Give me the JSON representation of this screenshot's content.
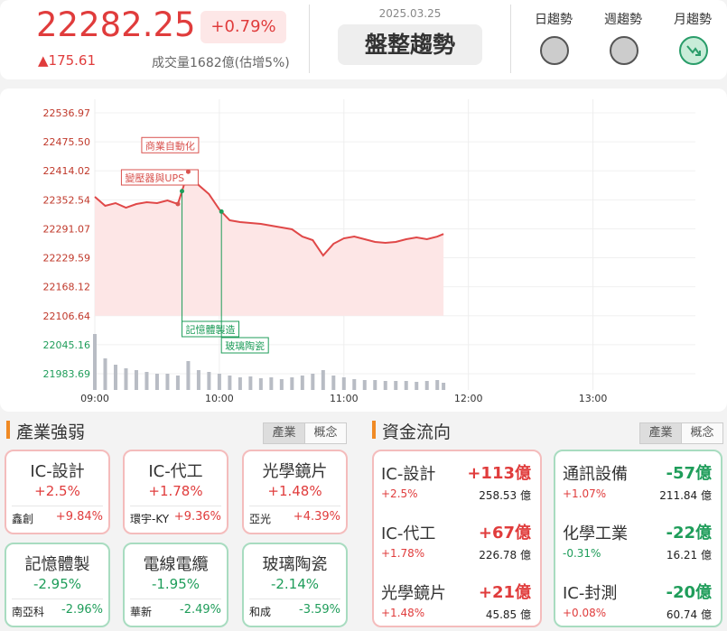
{
  "header": {
    "price": "22282.25",
    "change_pct": "+0.79%",
    "change": "▲175.61",
    "volume": "成交量1682億(估增5%)",
    "date": "2025.03.25",
    "status": "盤整趨勢",
    "trends": [
      {
        "label": "日趨勢",
        "state": "neutral"
      },
      {
        "label": "週趨勢",
        "state": "neutral"
      },
      {
        "label": "月趨勢",
        "state": "down"
      }
    ]
  },
  "chart_data": {
    "type": "line",
    "color": "#e04848",
    "fill": "#fde6e6",
    "x": [
      "09:00",
      "09:05",
      "09:10",
      "09:15",
      "09:20",
      "09:25",
      "09:30",
      "09:35",
      "09:40",
      "09:45",
      "09:50",
      "09:55",
      "10:00",
      "10:05",
      "10:10",
      "10:15",
      "10:20",
      "10:25",
      "10:30",
      "10:35",
      "10:40",
      "10:45",
      "10:50",
      "10:55",
      "11:00",
      "11:05",
      "11:10",
      "11:15",
      "11:20",
      "11:25",
      "11:30",
      "11:35",
      "11:40",
      "11:45",
      "11:48"
    ],
    "values": [
      22358.9,
      22339.8,
      22345.5,
      22335.9,
      22343.6,
      22347.4,
      22345.5,
      22351.2,
      22343.6,
      22412,
      22383.8,
      22364.6,
      22332.1,
      22309.1,
      22305.3,
      22303.4,
      22301.5,
      22297.6,
      22293.8,
      22290.0,
      22274.6,
      22267.0,
      22234.4,
      22259.3,
      22270.8,
      22274.6,
      22268.9,
      22263.2,
      22261.2,
      22263.2,
      22268.9,
      22272.7,
      22268.9,
      22274.6,
      22280
    ],
    "volume": [
      62,
      35,
      28,
      24,
      22,
      20,
      18,
      18,
      16,
      32,
      22,
      20,
      18,
      16,
      14,
      15,
      13,
      14,
      12,
      14,
      16,
      18,
      22,
      16,
      14,
      12,
      11,
      11,
      10,
      10,
      10,
      9,
      10,
      11,
      8
    ],
    "volume_ylim": [
      0,
      100
    ],
    "xlim": [
      "09:00",
      "13:45"
    ],
    "xticks": [
      "09:00",
      "10:00",
      "11:00",
      "12:00",
      "13:00"
    ],
    "ylim": [
      21949.2,
      22565.7
    ],
    "yticks": [
      22536.97,
      {
        "value": 22475.5,
        "label": "22475.50"
      },
      22414.02,
      22352.54,
      22291.07,
      22229.59,
      22168.12,
      22106.64,
      22045.16,
      21983.69
    ],
    "grid": true,
    "annotations": [
      {
        "text": "變壓器與UPS",
        "x": "09:40",
        "color": "#d9534f",
        "position": "above"
      },
      {
        "text": "商業自動化",
        "x": "09:45",
        "color": "#d9534f",
        "position": "above"
      },
      {
        "text": "記憶體製造",
        "x": "09:42",
        "color": "#1f9d5a",
        "position": "below"
      },
      {
        "text": "玻璃陶瓷",
        "x": "10:01",
        "color": "#1f9d5a",
        "position": "below"
      }
    ]
  },
  "industry": {
    "title": "產業強弱",
    "tabs": [
      "產業",
      "概念"
    ],
    "cards": [
      {
        "name": "IC-設計",
        "change": "+2.5%",
        "stock": "鑫創",
        "stock_change": "+9.84%",
        "direction": "up"
      },
      {
        "name": "IC-代工",
        "change": "+1.78%",
        "stock": "環宇-KY",
        "stock_change": "+9.36%",
        "direction": "up"
      },
      {
        "name": "光學鏡片",
        "change": "+1.48%",
        "stock": "亞光",
        "stock_change": "+4.39%",
        "direction": "up"
      },
      {
        "name": "記憶體製",
        "change": "-2.95%",
        "stock": "南亞科",
        "stock_change": "-2.96%",
        "direction": "down"
      },
      {
        "name": "電線電纜",
        "change": "-1.95%",
        "stock": "華新",
        "stock_change": "-2.49%",
        "direction": "down"
      },
      {
        "name": "玻璃陶瓷",
        "change": "-2.14%",
        "stock": "和成",
        "stock_change": "-3.59%",
        "direction": "down"
      }
    ]
  },
  "fund_flow": {
    "title": "資金流向",
    "tabs": [
      "產業",
      "概念"
    ],
    "columns": [
      {
        "direction": "up",
        "items": [
          {
            "name": "IC-設計",
            "amount": "+113億",
            "change": "+2.5%",
            "change_direction": "up",
            "volume": "258.53 億"
          },
          {
            "name": "IC-代工",
            "amount": "+67億",
            "change": "+1.78%",
            "change_direction": "up",
            "volume": "226.78 億"
          },
          {
            "name": "光學鏡片",
            "amount": "+21億",
            "change": "+1.48%",
            "change_direction": "up",
            "volume": "45.85 億"
          }
        ]
      },
      {
        "direction": "down",
        "items": [
          {
            "name": "通訊設備",
            "amount": "-57億",
            "change": "+1.07%",
            "change_direction": "up",
            "volume": "211.84 億"
          },
          {
            "name": "化學工業",
            "amount": "-22億",
            "change": "-0.31%",
            "change_direction": "down",
            "volume": "16.21 億"
          },
          {
            "name": "IC-封測",
            "amount": "-20億",
            "change": "+0.08%",
            "change_direction": "up",
            "volume": "60.74 億"
          }
        ]
      }
    ]
  }
}
